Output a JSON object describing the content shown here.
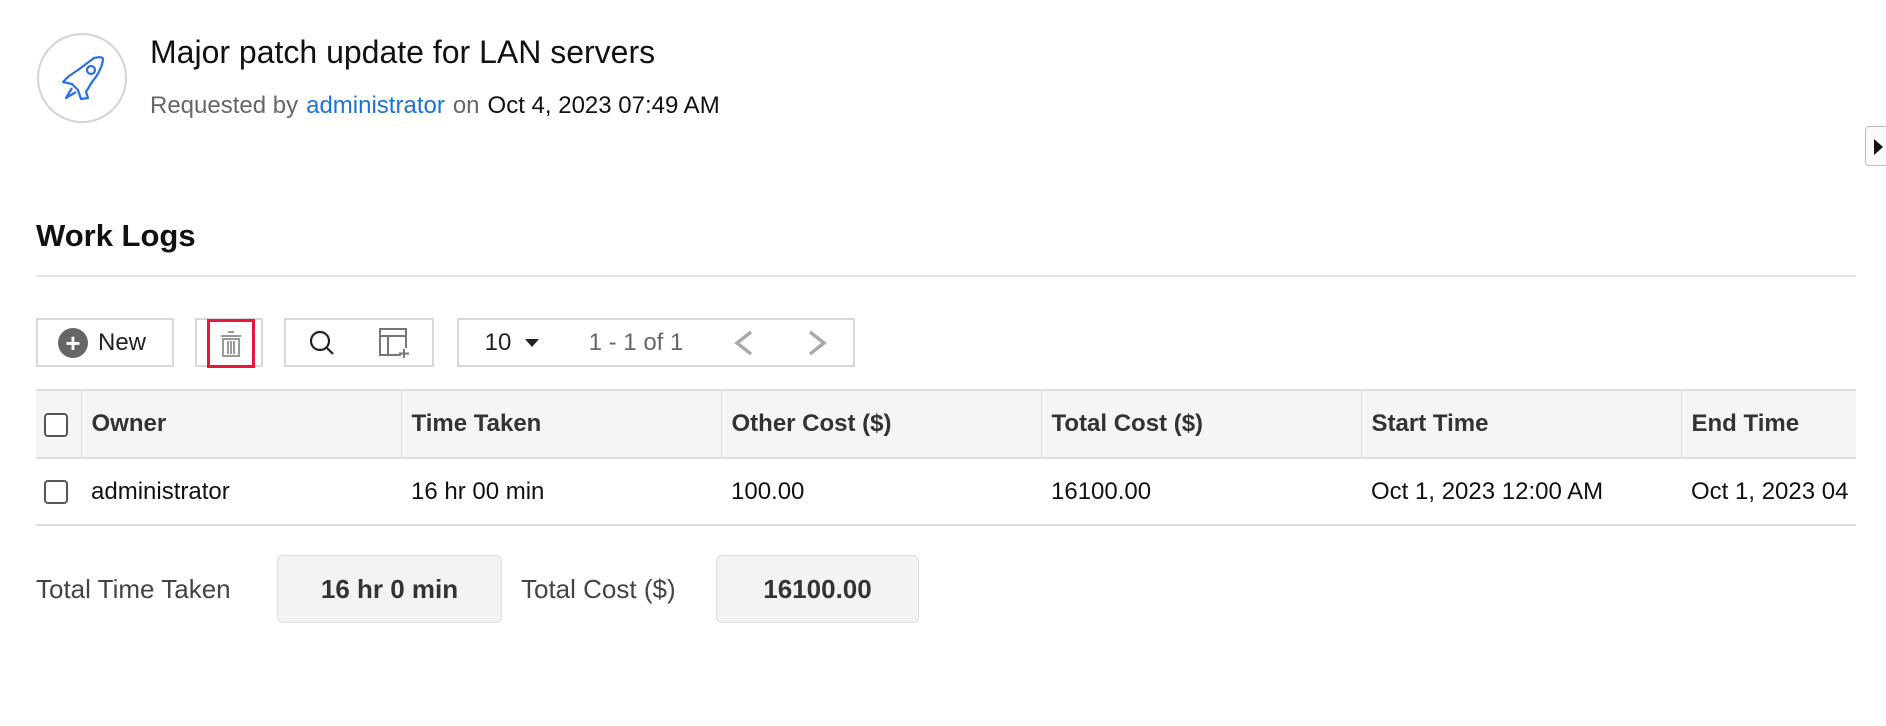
{
  "header": {
    "title": "Major patch update for LAN servers",
    "requested_by_label": "Requested by",
    "requester": "administrator",
    "on_label": "on",
    "date": "Oct 4, 2023 07:49 AM",
    "icon": "rocket-icon",
    "accent_color": "#1a73d9"
  },
  "section": {
    "title": "Work Logs"
  },
  "toolbar": {
    "new_label": "New",
    "per_page": "10",
    "page_info": "1 - 1 of 1"
  },
  "table": {
    "columns": [
      "Owner",
      "Time Taken",
      "Other Cost ($)",
      "Total Cost ($)",
      "Start Time",
      "End Time"
    ],
    "rows": [
      [
        "administrator",
        "16 hr 00 min",
        "100.00",
        "16100.00",
        "Oct 1, 2023 12:00 AM",
        "Oct 1, 2023 04"
      ]
    ]
  },
  "totals": {
    "time_label": "Total Time Taken",
    "time_value": "16 hr 0 min",
    "cost_label": "Total Cost ($)",
    "cost_value": "16100.00"
  }
}
